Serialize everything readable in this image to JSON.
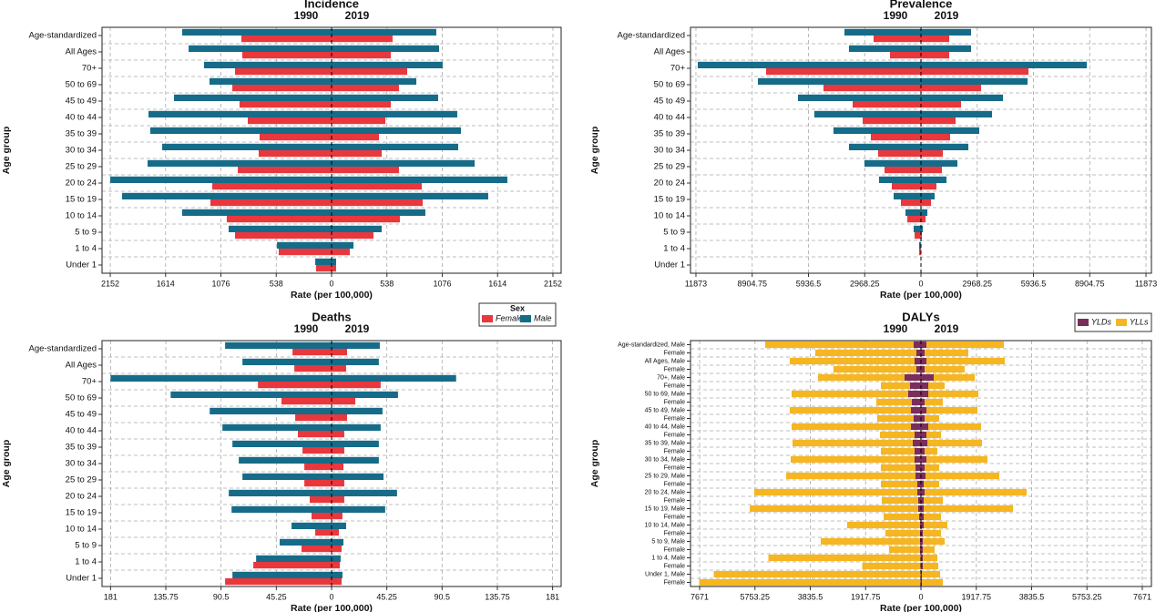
{
  "chart_data": [
    {
      "type": "butterfly",
      "title": "Incidence",
      "xlabel": "Rate (per 100,000)",
      "ylabel": "Age group",
      "categories": [
        "Age-standardized",
        "All Ages",
        "70+",
        "50 to 69",
        "45 to 49",
        "40 to 44",
        "35 to 39",
        "30 to 34",
        "25 to 29",
        "20 to 24",
        "15 to 19",
        "10 to 14",
        "5 to 9",
        "1 to 4",
        "Under 1"
      ],
      "xlim": [
        0,
        2232
      ],
      "xticks": [
        0,
        538,
        1076,
        1614,
        2152
      ],
      "grid": true,
      "stacked": false,
      "legend": "bottom-right",
      "legend_title": "Sex",
      "periods": [
        {
          "label": "1990",
          "series": [
            {
              "name": "Female",
              "color": "#e8383d",
              "values": [
                877,
                868,
                939,
                965,
                895,
                815,
                700,
                709,
                912,
                1160,
                1178,
                1019,
                939,
                514,
                151
              ]
            },
            {
              "name": "Male",
              "color": "#166b89",
              "values": [
                1453,
                1390,
                1240,
                1187,
                1532,
                1780,
                1763,
                1647,
                1789,
                2152,
                2037,
                1453,
                1001,
                531,
                159
              ]
            }
          ]
        },
        {
          "label": "2019",
          "series": [
            {
              "name": "Female",
              "color": "#e8383d",
              "values": [
                593,
                576,
                735,
                655,
                576,
                523,
                461,
                487,
                655,
                877,
                886,
                664,
                407,
                177,
                44
              ]
            },
            {
              "name": "Male",
              "color": "#166b89",
              "values": [
                1018,
                1045,
                1080,
                824,
                1036,
                1222,
                1258,
                1231,
                1391,
                1709,
                1523,
                912,
                487,
                213,
                44
              ]
            }
          ]
        }
      ]
    },
    {
      "type": "butterfly",
      "title": "Prevalence",
      "xlabel": "Rate (per 100,000)",
      "ylabel": "Age group",
      "categories": [
        "Age-standardized",
        "All Ages",
        "70+",
        "50 to 69",
        "45 to 49",
        "40 to 44",
        "35 to 39",
        "30 to 34",
        "25 to 29",
        "20 to 24",
        "15 to 19",
        "10 to 14",
        "5 to 9",
        "1 to 4",
        "Under 1"
      ],
      "xlim": [
        0,
        12160
      ],
      "xticks": [
        0,
        2968.25,
        5936.5,
        8904.75,
        11873
      ],
      "grid": true,
      "stacked": false,
      "periods": [
        {
          "label": "1990",
          "series": [
            {
              "name": "Female",
              "color": "#e8383d",
              "values": [
                2500,
                1634,
                8172,
                5143,
                3605,
                3076,
                2644,
                2259,
                1923,
                1538,
                1058,
                721,
                336,
                96,
                5
              ]
            },
            {
              "name": "Male",
              "color": "#166b89",
              "values": [
                4038,
                3798,
                11777,
                8604,
                6489,
                5624,
                4615,
                3798,
                2980,
                2211,
                1442,
                817,
                385,
                96,
                5
              ]
            }
          ]
        },
        {
          "label": "2019",
          "series": [
            {
              "name": "Female",
              "color": "#e8383d",
              "values": [
                1490,
                1490,
                5672,
                3173,
                2115,
                1827,
                1538,
                1154,
                1106,
                817,
                529,
                240,
                48,
                10,
                5
              ]
            },
            {
              "name": "Male",
              "color": "#166b89",
              "values": [
                2644,
                2644,
                8749,
                5624,
                4326,
                3749,
                3076,
                2500,
                1923,
                1346,
                721,
                337,
                96,
                10,
                5
              ]
            }
          ]
        }
      ]
    },
    {
      "type": "butterfly",
      "title": "Deaths",
      "xlabel": "Rate (per 100,000)",
      "ylabel": "Age group",
      "categories": [
        "Age-standardized",
        "All Ages",
        "70+",
        "50 to 69",
        "45 to 49",
        "40 to 44",
        "35 to 39",
        "30 to 34",
        "25 to 29",
        "20 to 24",
        "15 to 19",
        "10 to 14",
        "5 to 9",
        "1 to 4",
        "Under 1"
      ],
      "xlim": [
        0,
        188
      ],
      "xticks": [
        0,
        45.25,
        90.5,
        135.75,
        181
      ],
      "grid": true,
      "stacked": false,
      "periods": [
        {
          "label": "1990",
          "series": [
            {
              "name": "Female",
              "color": "#e8383d",
              "values": [
                32.0,
                30.5,
                60.3,
                41.0,
                29.8,
                27.6,
                23.8,
                22.3,
                22.3,
                17.9,
                16.4,
                13.4,
                24.6,
                64.1,
                87.2
              ]
            },
            {
              "name": "Male",
              "color": "#166b89",
              "values": [
                87.2,
                73.0,
                181,
                131.8,
                99.8,
                89.4,
                81.2,
                76.0,
                73.0,
                84.2,
                81.9,
                32.8,
                42.5,
                61.8,
                81.2
              ]
            }
          ]
        },
        {
          "label": "2019",
          "series": [
            {
              "name": "Female",
              "color": "#e8383d",
              "values": [
                12.7,
                11.9,
                40.2,
                19.4,
                12.7,
                10.4,
                10.4,
                9.7,
                10.4,
                10.4,
                8.9,
                6.0,
                8.2,
                6.7,
                8.2
              ]
            },
            {
              "name": "Male",
              "color": "#166b89",
              "values": [
                39.5,
                38.7,
                102,
                54.4,
                41.7,
                40.2,
                38.7,
                38.7,
                42.5,
                53.6,
                43.9,
                11.9,
                9.7,
                7.4,
                8.9
              ]
            }
          ]
        }
      ]
    },
    {
      "type": "butterfly",
      "title": "DALYs",
      "xlabel": "Rate (per 100,000)",
      "ylabel": "Age group",
      "categories": [
        "Age-standardized, Male",
        "Female",
        "All Ages, Male",
        "Female",
        "70+, Male",
        "Female",
        "50 to 69, Male",
        "Female",
        "45 to 49, Male",
        "Female",
        "40 to 44, Male",
        "Female",
        "35 to 39, Male",
        "Female",
        "30 to 34, Male",
        "Female",
        "25 to 29, Male",
        "Female",
        "20 to 24, Male",
        "Female",
        "15 to 19, Male",
        "Female",
        "10 to 14, Male",
        "Female",
        "5 to 9, Male",
        "Female",
        "1 to 4, Male",
        "Female",
        "Under 1, Male",
        "Female"
      ],
      "xlim": [
        0,
        7988
      ],
      "xticks": [
        0,
        1917.75,
        3835.5,
        5753.25,
        7671
      ],
      "grid": true,
      "stacked": true,
      "legend": "top-right",
      "periods": [
        {
          "label": "1990",
          "series": [
            {
              "name": "YLDs",
              "color": "#7b2d5b",
              "values": [
                253,
                158,
                221,
                158,
                568,
                379,
                442,
                316,
                347,
                253,
                347,
                221,
                284,
                221,
                221,
                189,
                189,
                126,
                126,
                95,
                95,
                63,
                32,
                32,
                32,
                32,
                16,
                16,
                16,
                16
              ]
            },
            {
              "name": "YLLs",
              "color": "#f5b621",
              "values": [
                5146,
                3504,
                4325,
                2873,
                2999,
                1010,
                4041,
                1231,
                4199,
                1263,
                4136,
                1200,
                4167,
                1168,
                4294,
                1200,
                4483,
                1263,
                5651,
                1263,
                5840,
                1231,
                2526,
                1200,
                3441,
                1073,
                5272,
                2020,
                7166,
                7671
              ]
            }
          ]
        },
        {
          "label": "2019",
          "series": [
            {
              "name": "YLDs",
              "color": "#7b2d5b",
              "values": [
                189,
                126,
                189,
                126,
                442,
                253,
                253,
                126,
                189,
                126,
                253,
                189,
                221,
                126,
                189,
                126,
                158,
                95,
                126,
                95,
                95,
                95,
                95,
                63,
                63,
                63,
                63,
                63,
                32,
                32
              ]
            },
            {
              "name": "YLLs",
              "color": "#f5b621",
              "values": [
                2683,
                1515,
                2715,
                1389,
                1421,
                568,
                1736,
                631,
                1768,
                505,
                1831,
                505,
                1894,
                442,
                2115,
                505,
                2557,
                537,
                3536,
                663,
                3094,
                600,
                821,
                631,
                758,
                410,
                505,
                537,
                631,
                726
              ]
            }
          ]
        }
      ]
    }
  ]
}
